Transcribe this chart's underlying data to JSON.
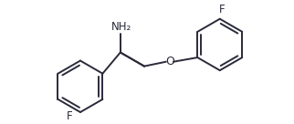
{
  "bg_color": "#ffffff",
  "line_color": "#2a2a3a",
  "line_width": 1.4,
  "font_size_label": 8.5,
  "NH2_label": "NH₂",
  "O_label": "O",
  "F_label_left": "F",
  "F_label_right": "F",
  "figure_width": 3.22,
  "figure_height": 1.36,
  "dpi": 100
}
